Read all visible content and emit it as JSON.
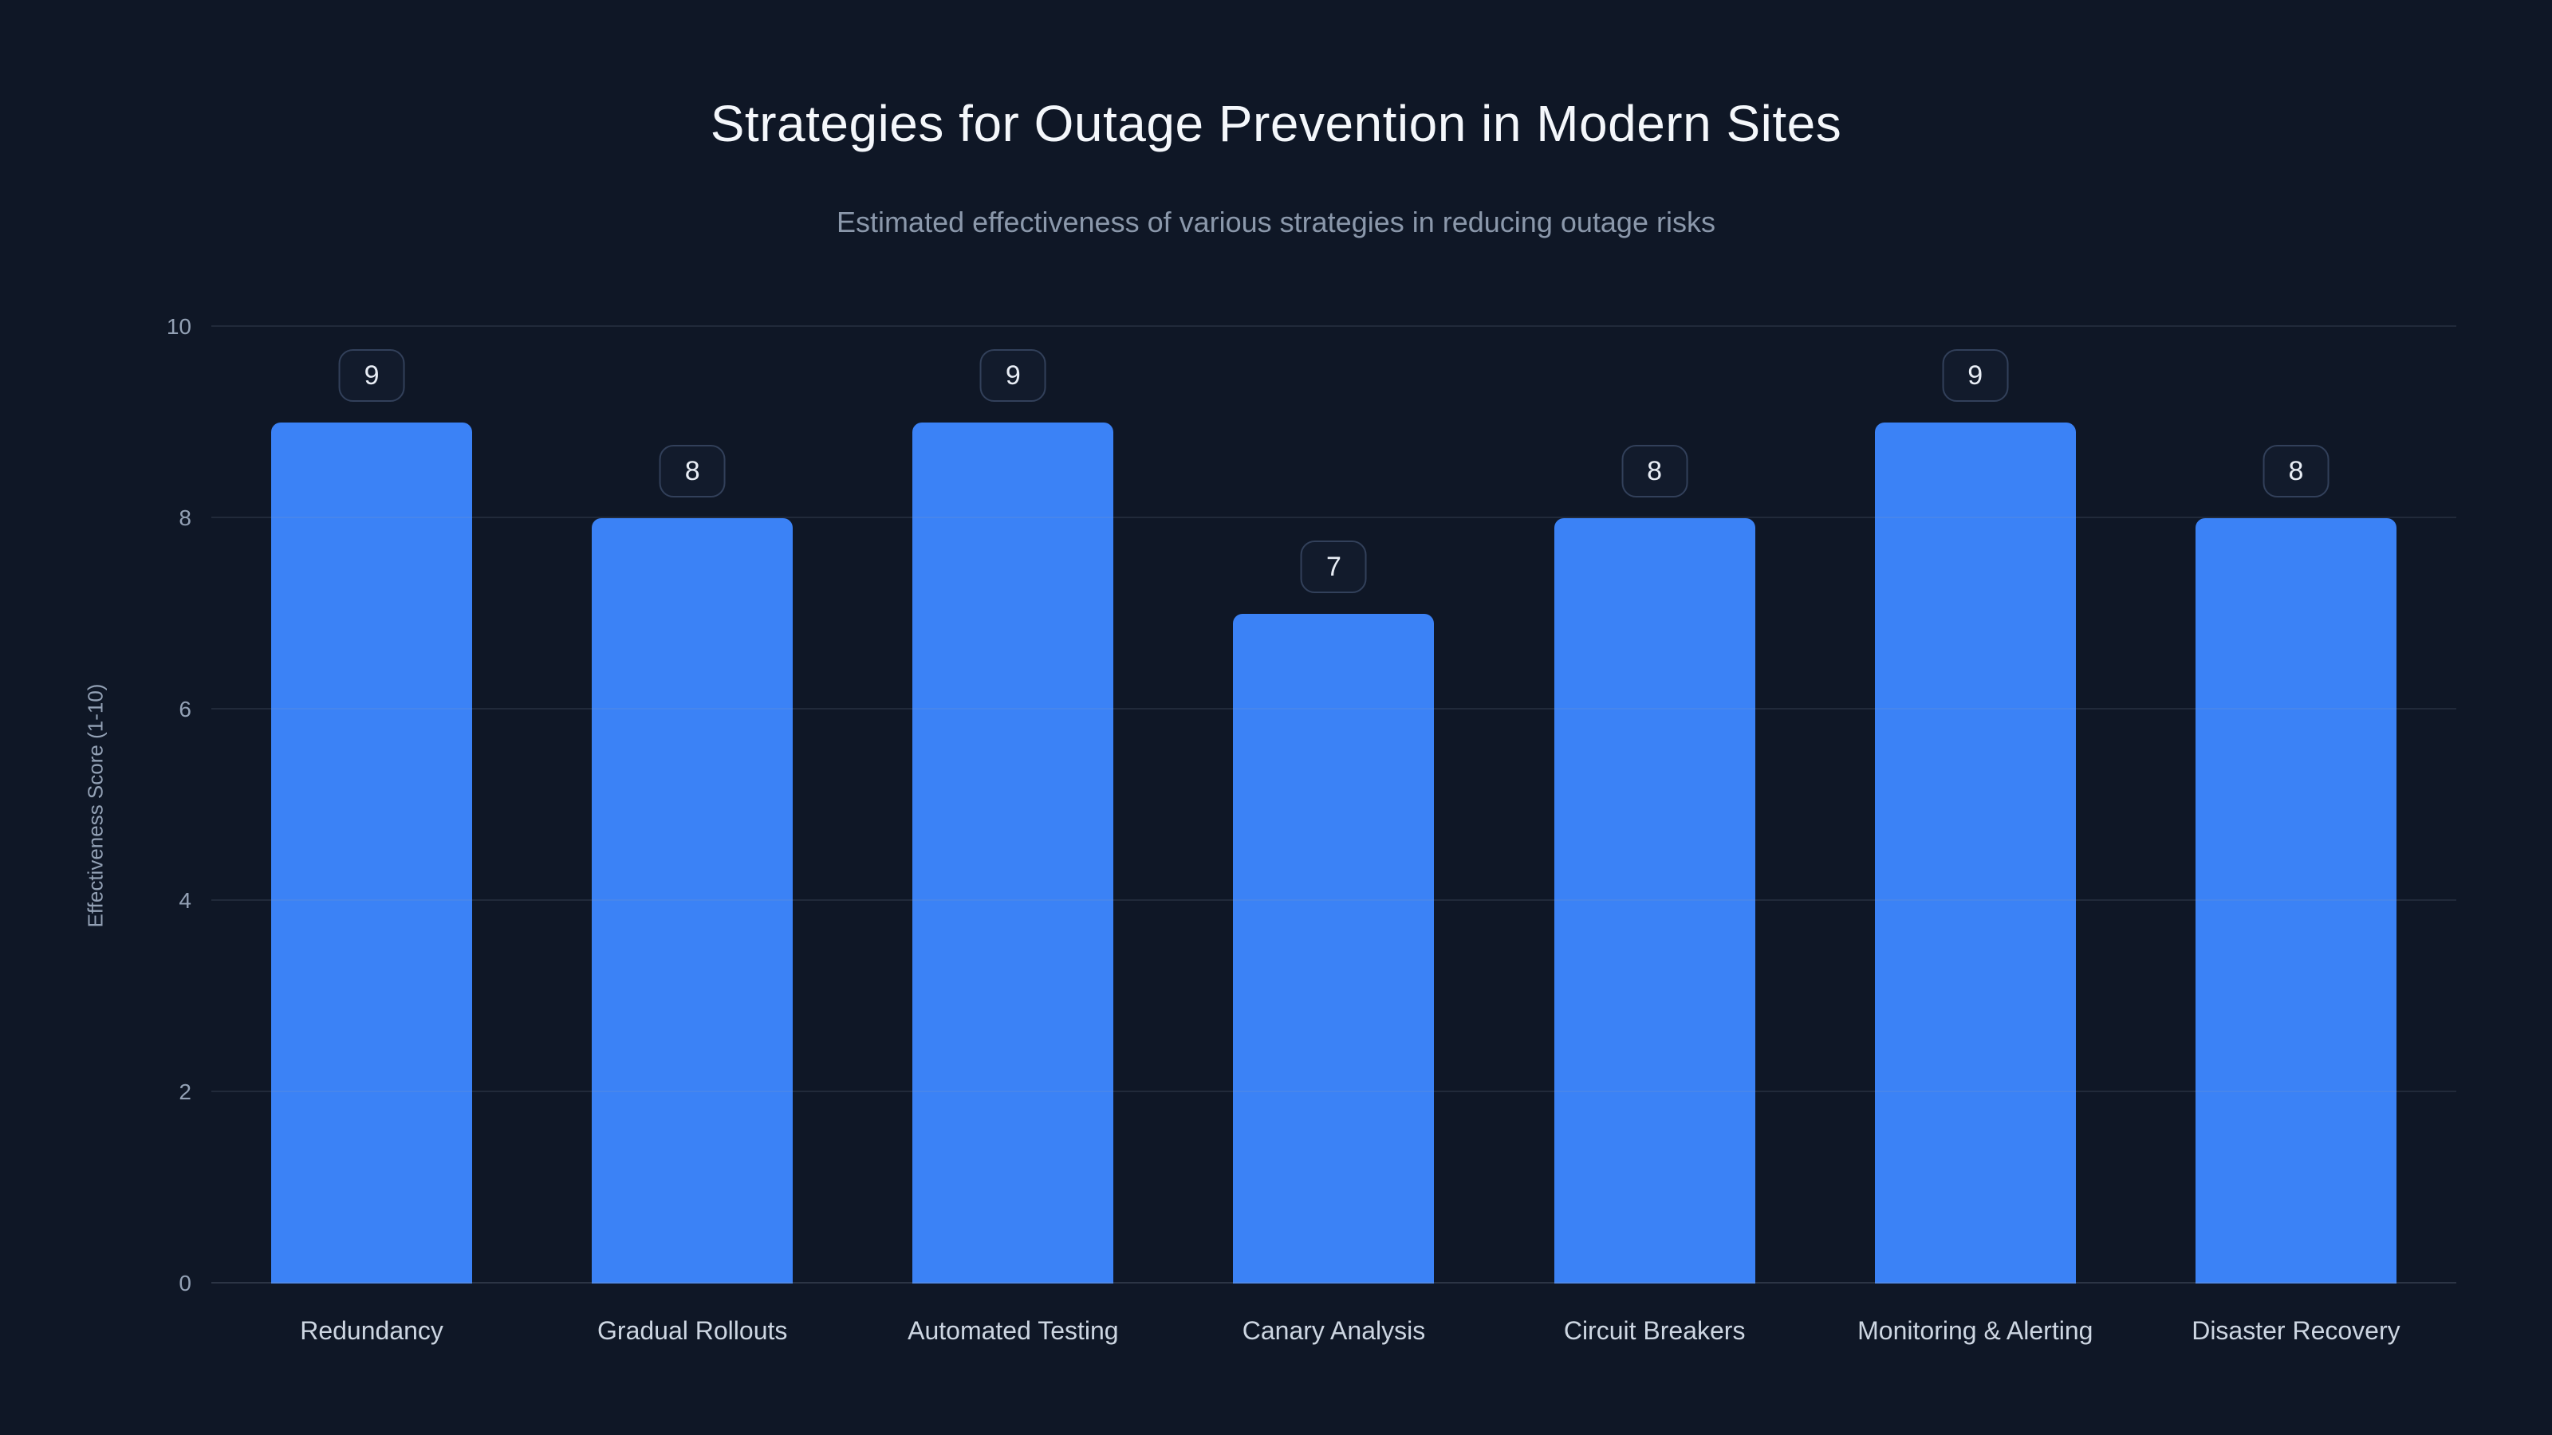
{
  "chart_data": {
    "type": "bar",
    "title": "Strategies for Outage Prevention in Modern Sites",
    "subtitle": "Estimated effectiveness of various strategies in reducing outage risks",
    "ylabel": "Effectiveness Score (1-10)",
    "xlabel": "",
    "categories": [
      "Redundancy",
      "Gradual Rollouts",
      "Automated Testing",
      "Canary Analysis",
      "Circuit Breakers",
      "Monitoring & Alerting",
      "Disaster Recovery"
    ],
    "values": [
      9,
      8,
      9,
      7,
      8,
      9,
      8
    ],
    "ylim": [
      0,
      10
    ],
    "yticks": [
      0,
      2,
      4,
      6,
      8,
      10
    ],
    "grid": true,
    "legend_position": "none",
    "data_labels": true,
    "colors": {
      "background": "#0f1726",
      "bar": "#3b82f6",
      "title_text": "#f4f7fb",
      "subtitle_text": "#8b98ab",
      "axis_text": "#93a1b5",
      "gridline": "rgba(148,163,184,0.14)",
      "badge_border": "#32405a"
    }
  }
}
